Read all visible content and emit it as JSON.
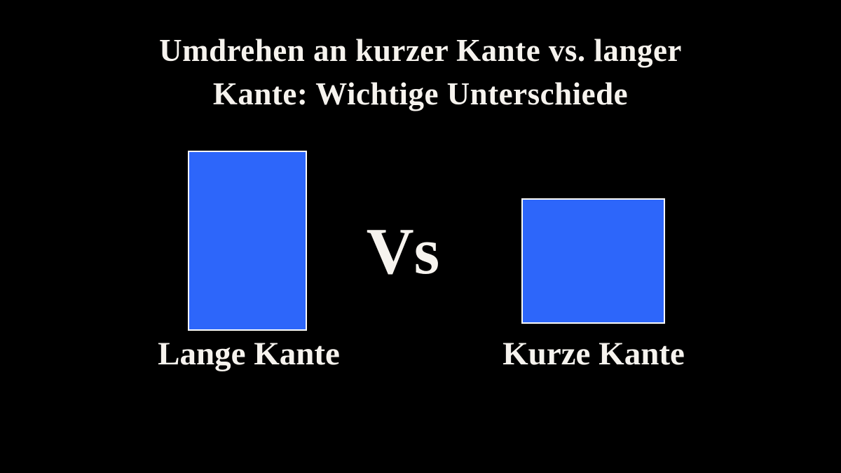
{
  "title": {
    "lines": [
      "Umdrehen an kurzer Kante vs. langer",
      "Kante: Wichtige Unterschiede"
    ]
  },
  "comparison": {
    "vs_label": "Vs",
    "left": {
      "label": "Lange Kante",
      "shape": "portrait rectangle"
    },
    "right": {
      "label": "Kurze Kante",
      "shape": "landscape rectangle"
    }
  },
  "colors": {
    "background": "#000000",
    "rect_fill": "#2D66FA",
    "rect_border": "#FDFDFD",
    "text": "#F6F3EE"
  }
}
